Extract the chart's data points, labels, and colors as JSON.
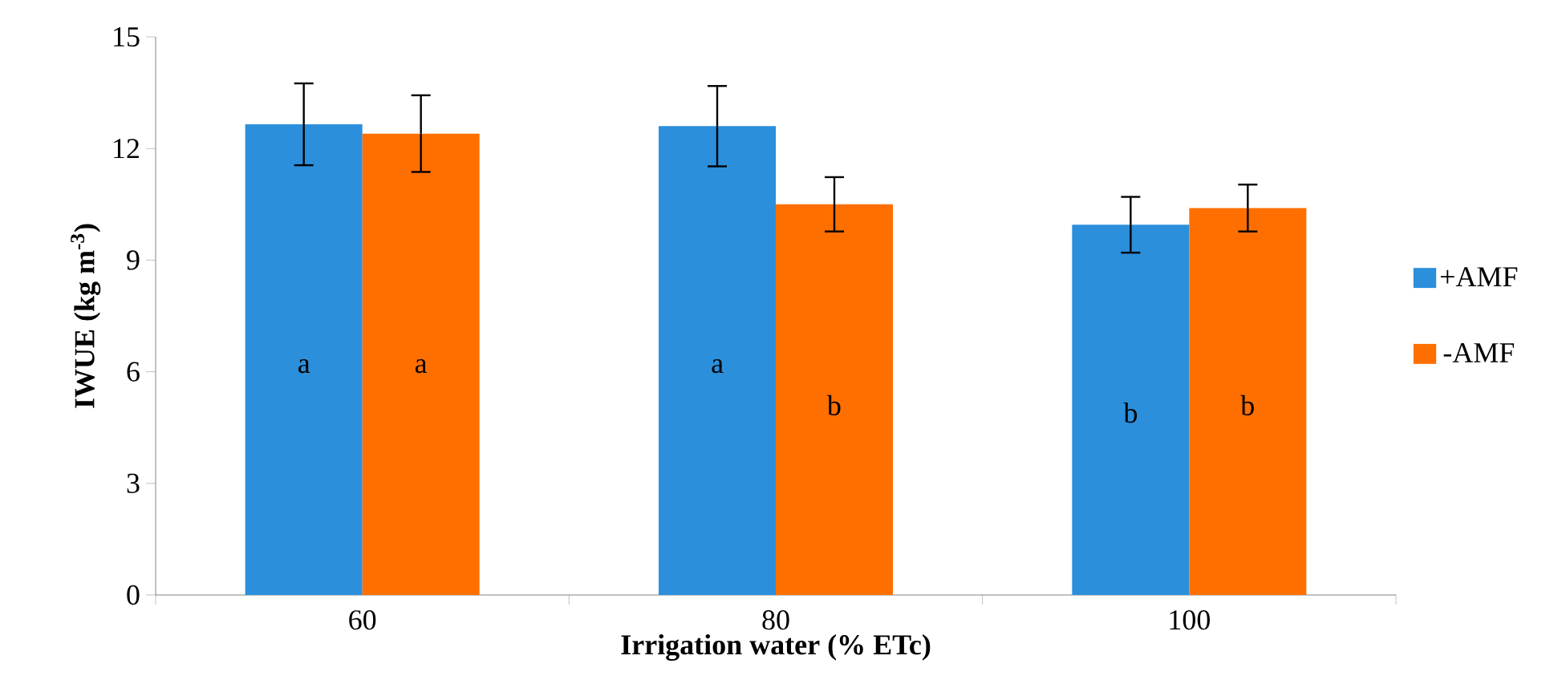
{
  "chart_data": {
    "type": "bar",
    "xlabel": "Irrigation water (% ETc)",
    "ylabel": "IWUE (kg m$^{-3}$)",
    "categories": [
      "60",
      "80",
      "100"
    ],
    "series": [
      {
        "name": "+AMF",
        "color": "#2b8fdb",
        "values": [
          12.65,
          12.6,
          9.95
        ],
        "errors": [
          1.1,
          1.08,
          0.75
        ]
      },
      {
        "name": "-AMF",
        "color": "#ff6f00",
        "values": [
          12.4,
          10.5,
          10.4
        ],
        "errors": [
          1.03,
          0.73,
          0.63
        ]
      }
    ],
    "ylim": [
      0,
      15
    ],
    "yticks": [
      0,
      3,
      6,
      9,
      12,
      15
    ],
    "grid": false,
    "legend": "right",
    "annotations": [
      {
        "text": "a",
        "x": "60",
        "y": 6.15
      },
      {
        "text": "a",
        "x": "60",
        "y": 6.15
      },
      {
        "text": "a",
        "x": "80",
        "y": 6.15
      },
      {
        "text": "b",
        "x": "80",
        "y": 5.1
      },
      {
        "text": "b",
        "x": "100",
        "y": 4.9
      },
      {
        "text": "b",
        "x": "100",
        "y": 5.1
      }
    ]
  }
}
